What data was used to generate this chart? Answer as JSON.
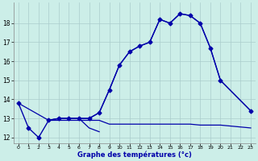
{
  "xlabel": "Graphe des températures (°c)",
  "background_color": "#cceee8",
  "grid_color": "#aacccc",
  "line_color": "#0000aa",
  "xlim": [
    -0.5,
    23.5
  ],
  "ylim": [
    11.7,
    19.1
  ],
  "yticks": [
    12,
    13,
    14,
    15,
    16,
    17,
    18
  ],
  "xticks": [
    0,
    1,
    2,
    3,
    4,
    5,
    6,
    7,
    8,
    9,
    10,
    11,
    12,
    13,
    14,
    15,
    16,
    17,
    18,
    19,
    20,
    21,
    22,
    23
  ],
  "mainline_x": [
    0,
    1,
    2,
    3,
    4,
    5,
    6,
    7,
    8,
    9,
    10,
    11,
    12,
    13,
    14,
    15,
    16,
    17,
    18,
    19,
    20,
    23
  ],
  "mainline_y": [
    13.8,
    12.5,
    12.0,
    12.9,
    13.0,
    13.0,
    13.0,
    13.0,
    13.3,
    14.5,
    15.8,
    16.5,
    16.8,
    17.0,
    18.2,
    18.0,
    18.5,
    18.4,
    18.0,
    16.7,
    15.0,
    13.4
  ],
  "flatline_x": [
    3,
    4,
    5,
    6,
    7,
    8,
    9,
    10,
    11,
    12,
    13,
    14,
    15,
    16,
    17,
    18,
    19,
    20,
    23
  ],
  "flatline_y": [
    12.9,
    12.9,
    12.9,
    12.9,
    12.9,
    12.9,
    12.7,
    12.7,
    12.7,
    12.7,
    12.7,
    12.7,
    12.7,
    12.7,
    12.7,
    12.65,
    12.65,
    12.65,
    12.5
  ],
  "dipline_x": [
    3,
    4,
    5,
    6,
    7,
    8
  ],
  "dipline_y": [
    12.9,
    13.0,
    13.0,
    13.0,
    12.5,
    12.3
  ],
  "diagonal_x": [
    0,
    3,
    4,
    5,
    6,
    7,
    8,
    9,
    10,
    11,
    12,
    13,
    14,
    15,
    16,
    17,
    18,
    19,
    20,
    23
  ],
  "diagonal_y": [
    13.8,
    12.9,
    13.0,
    13.0,
    13.0,
    13.0,
    13.3,
    14.5,
    15.8,
    16.5,
    16.8,
    17.0,
    18.2,
    18.0,
    18.5,
    18.4,
    18.0,
    16.7,
    15.0,
    13.4
  ]
}
